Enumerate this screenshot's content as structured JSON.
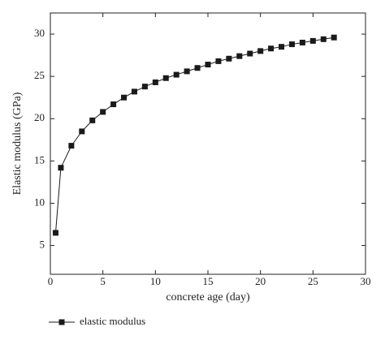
{
  "chart_data": {
    "type": "line",
    "x_label": "concrete age (day)",
    "y_label": "Elastic modulus (GPa)",
    "x": [
      0.5,
      1,
      2,
      3,
      4,
      5,
      6,
      7,
      8,
      9,
      10,
      11,
      12,
      13,
      14,
      15,
      16,
      17,
      18,
      19,
      20,
      21,
      22,
      23,
      24,
      25,
      26,
      27
    ],
    "series": [
      {
        "name": "elastic modulus",
        "color": "#1a1a1a",
        "values": [
          6.5,
          14.2,
          16.8,
          18.5,
          19.8,
          20.8,
          21.7,
          22.5,
          23.2,
          23.8,
          24.3,
          24.8,
          25.2,
          25.6,
          26.0,
          26.4,
          26.8,
          27.1,
          27.4,
          27.7,
          28.0,
          28.3,
          28.5,
          28.8,
          29.0,
          29.2,
          29.4,
          29.6
        ]
      }
    ],
    "xlim": [
      0,
      30
    ],
    "xticks": [
      0,
      5,
      10,
      15,
      20,
      25,
      30
    ],
    "ylim": [
      1.6,
      32.5
    ],
    "yticks": [
      5,
      10,
      15,
      20,
      25,
      30
    ],
    "legend": "bottom-left"
  }
}
